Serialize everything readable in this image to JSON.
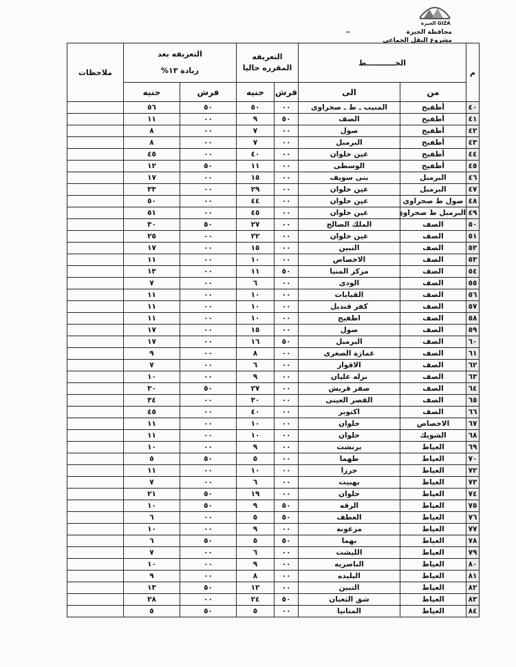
{
  "letterhead": {
    "logo_text": "GIZA الجيزة",
    "governorate": "محافظة الجيزة",
    "project": "مشروع النقل الجماعى"
  },
  "table": {
    "headers": {
      "index": "م",
      "route": "الخـــــــــــط",
      "from": "من",
      "to": "الى",
      "current_fare_line1": "التعريفه",
      "current_fare_line2": "المقرره حاليا",
      "new_fare_line1": "التعريفه بعد",
      "new_fare_line2": "زيادة ١٣%",
      "piaster": "قرش",
      "pound": "جنيه",
      "notes": "ملاحظات"
    },
    "rows": [
      {
        "no": "٤٠",
        "from": "أطفيح",
        "to": "المنيب ـ ط ـ صحراوى",
        "cur_qirsh": "٠٠",
        "cur_pound": "٥٠",
        "new_qirsh": "٥٠",
        "new_pound": "٥٦"
      },
      {
        "no": "٤١",
        "from": "أطفيح",
        "to": "الصف",
        "cur_qirsh": "٥٠",
        "cur_pound": "٩",
        "new_qirsh": "٠٠",
        "new_pound": "١١"
      },
      {
        "no": "٤٢",
        "from": "أطفيح",
        "to": "صول",
        "cur_qirsh": "٠٠",
        "cur_pound": "٧",
        "new_qirsh": "٠٠",
        "new_pound": "٨"
      },
      {
        "no": "٤٣",
        "from": "أطفيح",
        "to": "البرمبل",
        "cur_qirsh": "٠٠",
        "cur_pound": "٧",
        "new_qirsh": "٠٠",
        "new_pound": "٨"
      },
      {
        "no": "٤٤",
        "from": "أطفيح",
        "to": "عين حلوان",
        "cur_qirsh": "٠٠",
        "cur_pound": "٤٠",
        "new_qirsh": "٠٠",
        "new_pound": "٤٥"
      },
      {
        "no": "٤٥",
        "from": "أطفيح",
        "to": "الوسطى",
        "cur_qirsh": "٠٠",
        "cur_pound": "١١",
        "new_qirsh": "٥٠",
        "new_pound": "١٢"
      },
      {
        "no": "٤٦",
        "from": "البرمبل",
        "to": "بنى سويف",
        "cur_qirsh": "٠٠",
        "cur_pound": "١٥",
        "new_qirsh": "٠٠",
        "new_pound": "١٧"
      },
      {
        "no": "٤٧",
        "from": "البرمبل",
        "to": "عين حلوان",
        "cur_qirsh": "٠٠",
        "cur_pound": "٢٩",
        "new_qirsh": "٠٠",
        "new_pound": "٣٣"
      },
      {
        "no": "٤٨",
        "from": "صول ط صحراوى",
        "to": "عين حلوان",
        "cur_qirsh": "٠٠",
        "cur_pound": "٤٤",
        "new_qirsh": "٠٠",
        "new_pound": "٥٠"
      },
      {
        "no": "٤٩",
        "from": "البرمبل ط صحراوى",
        "to": "عين حلوان",
        "cur_qirsh": "٠٠",
        "cur_pound": "٤٥",
        "new_qirsh": "٠٠",
        "new_pound": "٥١"
      },
      {
        "no": "٥٠",
        "from": "الصف",
        "to": "الملك الصالح",
        "cur_qirsh": "٠٠",
        "cur_pound": "٢٧",
        "new_qirsh": "٥٠",
        "new_pound": "٣٠"
      },
      {
        "no": "٥١",
        "from": "الصف",
        "to": "عين حلوان",
        "cur_qirsh": "٠٠",
        "cur_pound": "٢٢",
        "new_qirsh": "٠٠",
        "new_pound": "٢٥"
      },
      {
        "no": "٥٢",
        "from": "الصف",
        "to": "التبين",
        "cur_qirsh": "٠٠",
        "cur_pound": "١٥",
        "new_qirsh": "٠٠",
        "new_pound": "١٧"
      },
      {
        "no": "٥٣",
        "from": "الصف",
        "to": "الاخصاص",
        "cur_qirsh": "٠٠",
        "cur_pound": "١٠",
        "new_qirsh": "٠٠",
        "new_pound": "١١"
      },
      {
        "no": "٥٤",
        "from": "الصف",
        "to": "مركز المنيا",
        "cur_qirsh": "٥٠",
        "cur_pound": "١١",
        "new_qirsh": "٠٠",
        "new_pound": "١٣"
      },
      {
        "no": "٥٥",
        "from": "الصف",
        "to": "الودى",
        "cur_qirsh": "٠٠",
        "cur_pound": "٦",
        "new_qirsh": "٠٠",
        "new_pound": "٧"
      },
      {
        "no": "٥٦",
        "from": "الصف",
        "to": "القبابات",
        "cur_qirsh": "٠٠",
        "cur_pound": "١٠",
        "new_qirsh": "٠٠",
        "new_pound": "١١"
      },
      {
        "no": "٥٧",
        "from": "الصف",
        "to": "كفر قنديل",
        "cur_qirsh": "٠٠",
        "cur_pound": "١٠",
        "new_qirsh": "٠٠",
        "new_pound": "١١"
      },
      {
        "no": "٥٨",
        "from": "الصف",
        "to": "اطفيح",
        "cur_qirsh": "٠٠",
        "cur_pound": "١٠",
        "new_qirsh": "٠٠",
        "new_pound": "١١"
      },
      {
        "no": "٥٩",
        "from": "الصف",
        "to": "صول",
        "cur_qirsh": "٠٠",
        "cur_pound": "١٥",
        "new_qirsh": "٠٠",
        "new_pound": "١٧"
      },
      {
        "no": "٦٠",
        "from": "الصف",
        "to": "البرمبل",
        "cur_qirsh": "٥٠",
        "cur_pound": "١٦",
        "new_qirsh": "٠٠",
        "new_pound": "١٧"
      },
      {
        "no": "٦١",
        "from": "الصف",
        "to": "غمازة الصغرى",
        "cur_qirsh": "٠٠",
        "cur_pound": "٨",
        "new_qirsh": "٠٠",
        "new_pound": "٩"
      },
      {
        "no": "٦٢",
        "from": "الصف",
        "to": "الاقواز",
        "cur_qirsh": "٠٠",
        "cur_pound": "٦",
        "new_qirsh": "٠٠",
        "new_pound": "٧"
      },
      {
        "no": "٦٣",
        "from": "الصف",
        "to": "نزله عليان",
        "cur_qirsh": "٠٠",
        "cur_pound": "٩",
        "new_qirsh": "٠٠",
        "new_pound": "١٠"
      },
      {
        "no": "٦٤",
        "from": "الصف",
        "to": "صقر قريش",
        "cur_qirsh": "٠٠",
        "cur_pound": "٢٧",
        "new_qirsh": "٥٠",
        "new_pound": "٣٠"
      },
      {
        "no": "٦٥",
        "from": "الصف",
        "to": "القصر العينى",
        "cur_qirsh": "٠٠",
        "cur_pound": "٣٠",
        "new_qirsh": "٠٠",
        "new_pound": "٣٤"
      },
      {
        "no": "٦٦",
        "from": "الصف",
        "to": "اكتوبر",
        "cur_qirsh": "٠٠",
        "cur_pound": "٤٠",
        "new_qirsh": "٠٠",
        "new_pound": "٤٥"
      },
      {
        "no": "٦٧",
        "from": "الاخصاص",
        "to": "حلوان",
        "cur_qirsh": "٠٠",
        "cur_pound": "١٠",
        "new_qirsh": "٠٠",
        "new_pound": "١١"
      },
      {
        "no": "٦٨",
        "from": "الشوبك",
        "to": "حلوان",
        "cur_qirsh": "٠٠",
        "cur_pound": "١٠",
        "new_qirsh": "٠٠",
        "new_pound": "١١"
      },
      {
        "no": "٦٩",
        "from": "العياط",
        "to": "برنشت",
        "cur_qirsh": "٠٠",
        "cur_pound": "٩",
        "new_qirsh": "٠٠",
        "new_pound": "١٠"
      },
      {
        "no": "٧٠",
        "from": "العياط",
        "to": "طهما",
        "cur_qirsh": "٠٠",
        "cur_pound": "٥",
        "new_qirsh": "٥٠",
        "new_pound": "٥"
      },
      {
        "no": "٧٢",
        "from": "العياط",
        "to": "جرزا",
        "cur_qirsh": "٠٠",
        "cur_pound": "١٠",
        "new_qirsh": "٠٠",
        "new_pound": "١١"
      },
      {
        "no": "٧٣",
        "from": "العياط",
        "to": "بهبيت",
        "cur_qirsh": "٠٠",
        "cur_pound": "٦",
        "new_qirsh": "٠٠",
        "new_pound": "٧"
      },
      {
        "no": "٧٤",
        "from": "العياط",
        "to": "حلوان",
        "cur_qirsh": "٠٠",
        "cur_pound": "١٩",
        "new_qirsh": "٥٠",
        "new_pound": "٢١"
      },
      {
        "no": "٧٥",
        "from": "العياط",
        "to": "الرقه",
        "cur_qirsh": "٥٠",
        "cur_pound": "٩",
        "new_qirsh": "٥٠",
        "new_pound": "١٠"
      },
      {
        "no": "٧٦",
        "from": "العياط",
        "to": "العطف",
        "cur_qirsh": "٥٠",
        "cur_pound": "٥",
        "new_qirsh": "٠٠",
        "new_pound": "٦"
      },
      {
        "no": "٧٧",
        "from": "العياط",
        "to": "مزغونه",
        "cur_qirsh": "٠٠",
        "cur_pound": "٩",
        "new_qirsh": "٠٠",
        "new_pound": "١٠"
      },
      {
        "no": "٧٨",
        "from": "العياط",
        "to": "بهما",
        "cur_qirsh": "٥٠",
        "cur_pound": "٥",
        "new_qirsh": "٥٠",
        "new_pound": "٦"
      },
      {
        "no": "٧٩",
        "from": "العياط",
        "to": "الليشت",
        "cur_qirsh": "٠٠",
        "cur_pound": "٦",
        "new_qirsh": "٠٠",
        "new_pound": "٧"
      },
      {
        "no": "٨٠",
        "from": "العياط",
        "to": "الناصريه",
        "cur_qirsh": "٠٠",
        "cur_pound": "٩",
        "new_qirsh": "٠٠",
        "new_pound": "١٠"
      },
      {
        "no": "٨١",
        "from": "العياط",
        "to": "البليده",
        "cur_qirsh": "٠٠",
        "cur_pound": "٨",
        "new_qirsh": "٠٠",
        "new_pound": "٩"
      },
      {
        "no": "٨٢",
        "from": "العياط",
        "to": "التبين",
        "cur_qirsh": "٠٠",
        "cur_pound": "١٢",
        "new_qirsh": "٥٠",
        "new_pound": "١٣"
      },
      {
        "no": "٨٣",
        "from": "العياط",
        "to": "شق الثعبان",
        "cur_qirsh": "٥٠",
        "cur_pound": "٢٤",
        "new_qirsh": "٠٠",
        "new_pound": "٢٨"
      },
      {
        "no": "٨٤",
        "from": "العياط",
        "to": "المتانيا",
        "cur_qirsh": "٠٠",
        "cur_pound": "٥",
        "new_qirsh": "٥٠",
        "new_pound": "٥"
      }
    ]
  }
}
